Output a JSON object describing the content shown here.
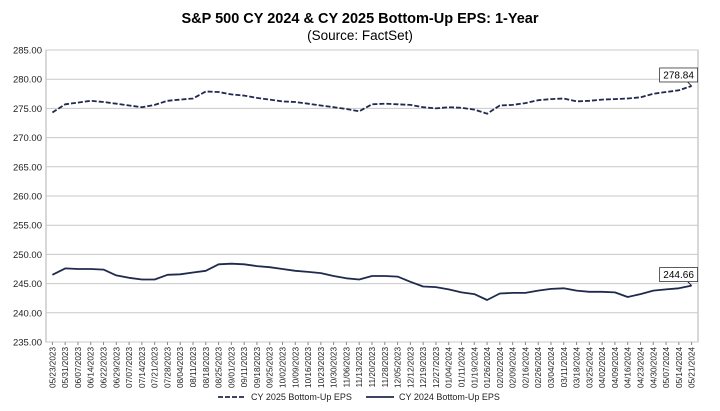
{
  "chart_data": {
    "type": "line",
    "title": "S&P 500 CY 2024 & CY 2025 Bottom-Up  EPS: 1-Year",
    "subtitle": "(Source: FactSet)",
    "xlabel": "",
    "ylabel": "",
    "ylim": [
      235,
      285
    ],
    "y_ticks": [
      "235.00",
      "240.00",
      "245.00",
      "250.00",
      "255.00",
      "260.00",
      "265.00",
      "270.00",
      "275.00",
      "280.00",
      "285.00"
    ],
    "grid": "horizontal",
    "legend_position": "bottom",
    "x_tick_labels": [
      "05/23/2023",
      "05/31/2023",
      "06/07/2023",
      "06/14/2023",
      "06/22/2023",
      "06/29/2023",
      "07/07/2023",
      "07/14/2023",
      "07/21/2023",
      "07/28/2023",
      "08/04/2023",
      "08/11/2023",
      "08/18/2023",
      "08/25/2023",
      "09/01/2023",
      "09/11/2023",
      "09/18/2023",
      "09/25/2023",
      "10/02/2023",
      "10/09/2023",
      "10/16/2023",
      "10/23/2023",
      "10/30/2023",
      "11/06/2023",
      "11/13/2023",
      "11/20/2023",
      "11/28/2023",
      "12/05/2023",
      "12/12/2023",
      "12/19/2023",
      "12/27/2023",
      "01/04/2024",
      "01/11/2024",
      "01/19/2024",
      "01/26/2024",
      "02/02/2024",
      "02/09/2024",
      "02/16/2024",
      "02/26/2024",
      "03/04/2024",
      "03/11/2024",
      "03/18/2024",
      "03/25/2024",
      "04/02/2024",
      "04/09/2024",
      "04/16/2024",
      "04/23/2024",
      "04/30/2024",
      "05/07/2024",
      "05/14/2024",
      "05/21/2024"
    ],
    "series": [
      {
        "name": "CY 2025 Bottom-Up EPS",
        "style": "dashed",
        "color": "#1f2a4d",
        "values": [
          274.3,
          275.7,
          276.0,
          276.3,
          276.1,
          275.8,
          275.5,
          275.2,
          275.6,
          276.3,
          276.5,
          276.7,
          277.9,
          277.8,
          277.4,
          277.2,
          276.8,
          276.5,
          276.2,
          276.1,
          275.8,
          275.5,
          275.2,
          274.9,
          274.5,
          275.7,
          275.8,
          275.7,
          275.6,
          275.2,
          275.0,
          275.2,
          275.1,
          274.8,
          274.1,
          275.5,
          275.6,
          275.9,
          276.4,
          276.6,
          276.7,
          276.2,
          276.3,
          276.5,
          276.6,
          276.7,
          276.9,
          277.5,
          277.8,
          278.1,
          278.84
        ]
      },
      {
        "name": "CY 2024 Bottom-Up EPS",
        "style": "solid",
        "color": "#1f2a4d",
        "values": [
          246.5,
          247.6,
          247.5,
          247.5,
          247.4,
          246.4,
          246.0,
          245.7,
          245.7,
          246.5,
          246.6,
          246.9,
          247.2,
          248.3,
          248.4,
          248.3,
          248.0,
          247.8,
          247.5,
          247.2,
          247.0,
          246.8,
          246.3,
          245.9,
          245.7,
          246.3,
          246.3,
          246.2,
          245.3,
          244.5,
          244.4,
          244.0,
          243.5,
          243.2,
          242.2,
          243.3,
          243.4,
          243.4,
          243.8,
          244.1,
          244.2,
          243.8,
          243.6,
          243.6,
          243.5,
          242.7,
          243.2,
          243.8,
          244.0,
          244.2,
          244.66
        ]
      }
    ],
    "annotations": [
      "278.84",
      "244.66"
    ]
  }
}
